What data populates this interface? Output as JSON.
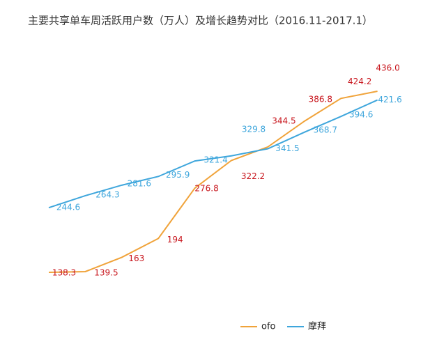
{
  "chart_data": {
    "type": "line",
    "title": "主要共享单车周活跃用户数（万人）及增长趋势对比（2016.11-2017.1）",
    "categories": [
      null,
      null,
      null,
      null,
      null,
      null,
      null,
      null,
      null,
      null
    ],
    "series": [
      {
        "name": "ofo",
        "color": "#f0a33a",
        "label_color": "#c8161d",
        "values": [
          138.3,
          139.5,
          163,
          194,
          276.8,
          322.2,
          344.5,
          386.8,
          424.2,
          436.0
        ],
        "value_labels": [
          "138.3",
          "139.5",
          "163",
          "194",
          "276.8",
          "322.2",
          "344.5",
          "386.8",
          "424.2",
          "436.0"
        ]
      },
      {
        "name": "摩拜",
        "color": "#3ea6dc",
        "label_color": "#3ea6dc",
        "values": [
          244.6,
          264.3,
          281.6,
          295.9,
          321.4,
          329.8,
          341.5,
          368.7,
          394.6,
          421.6
        ]
      }
    ],
    "legend": "bottom"
  }
}
